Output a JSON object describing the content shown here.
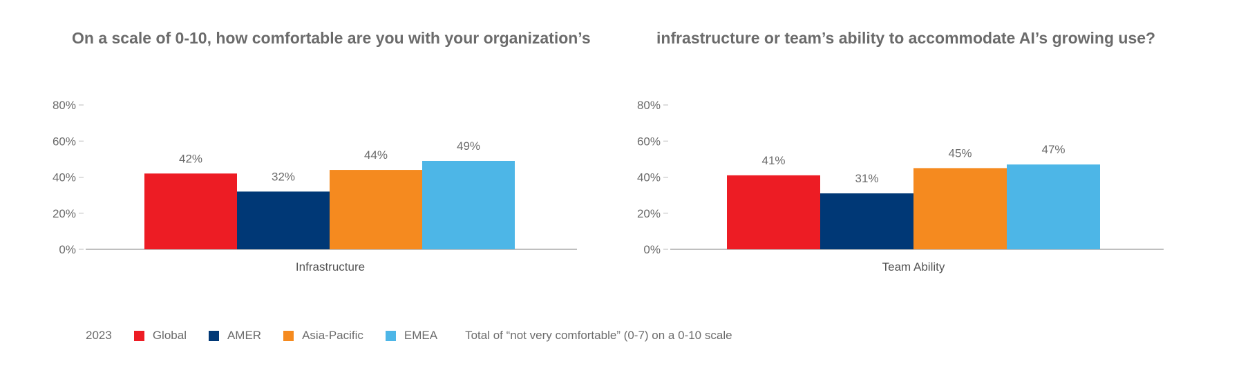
{
  "title": {
    "left": "On a scale of 0-10, how comfortable are you with your organization’s",
    "right": "infrastructure or team’s ability to accommodate AI’s growing use?"
  },
  "legend": {
    "year": "2023",
    "note": "Total of “not very comfortable” (0-7) on a 0-10 scale"
  },
  "chart_data": [
    {
      "type": "bar",
      "categories": [
        "Infrastructure"
      ],
      "series": [
        {
          "name": "Global",
          "values": [
            42
          ],
          "label": "42%",
          "color": "#ED1C24"
        },
        {
          "name": "AMER",
          "values": [
            32
          ],
          "label": "32%",
          "color": "#003876"
        },
        {
          "name": "Asia-Pacific",
          "values": [
            44
          ],
          "label": "44%",
          "color": "#F58A1F"
        },
        {
          "name": "EMEA",
          "values": [
            49
          ],
          "label": "49%",
          "color": "#4DB6E7"
        }
      ],
      "ylim": [
        0,
        80
      ],
      "yticks": [
        "0%",
        "20%",
        "40%",
        "60%",
        "80%"
      ],
      "grid": false
    },
    {
      "type": "bar",
      "categories": [
        "Team Ability"
      ],
      "series": [
        {
          "name": "Global",
          "values": [
            41
          ],
          "label": "41%",
          "color": "#ED1C24"
        },
        {
          "name": "AMER",
          "values": [
            31
          ],
          "label": "31%",
          "color": "#003876"
        },
        {
          "name": "Asia-Pacific",
          "values": [
            45
          ],
          "label": "45%",
          "color": "#F58A1F"
        },
        {
          "name": "EMEA",
          "values": [
            47
          ],
          "label": "47%",
          "color": "#4DB6E7"
        }
      ],
      "ylim": [
        0,
        80
      ],
      "yticks": [
        "0%",
        "20%",
        "40%",
        "60%",
        "80%"
      ],
      "grid": false
    }
  ]
}
